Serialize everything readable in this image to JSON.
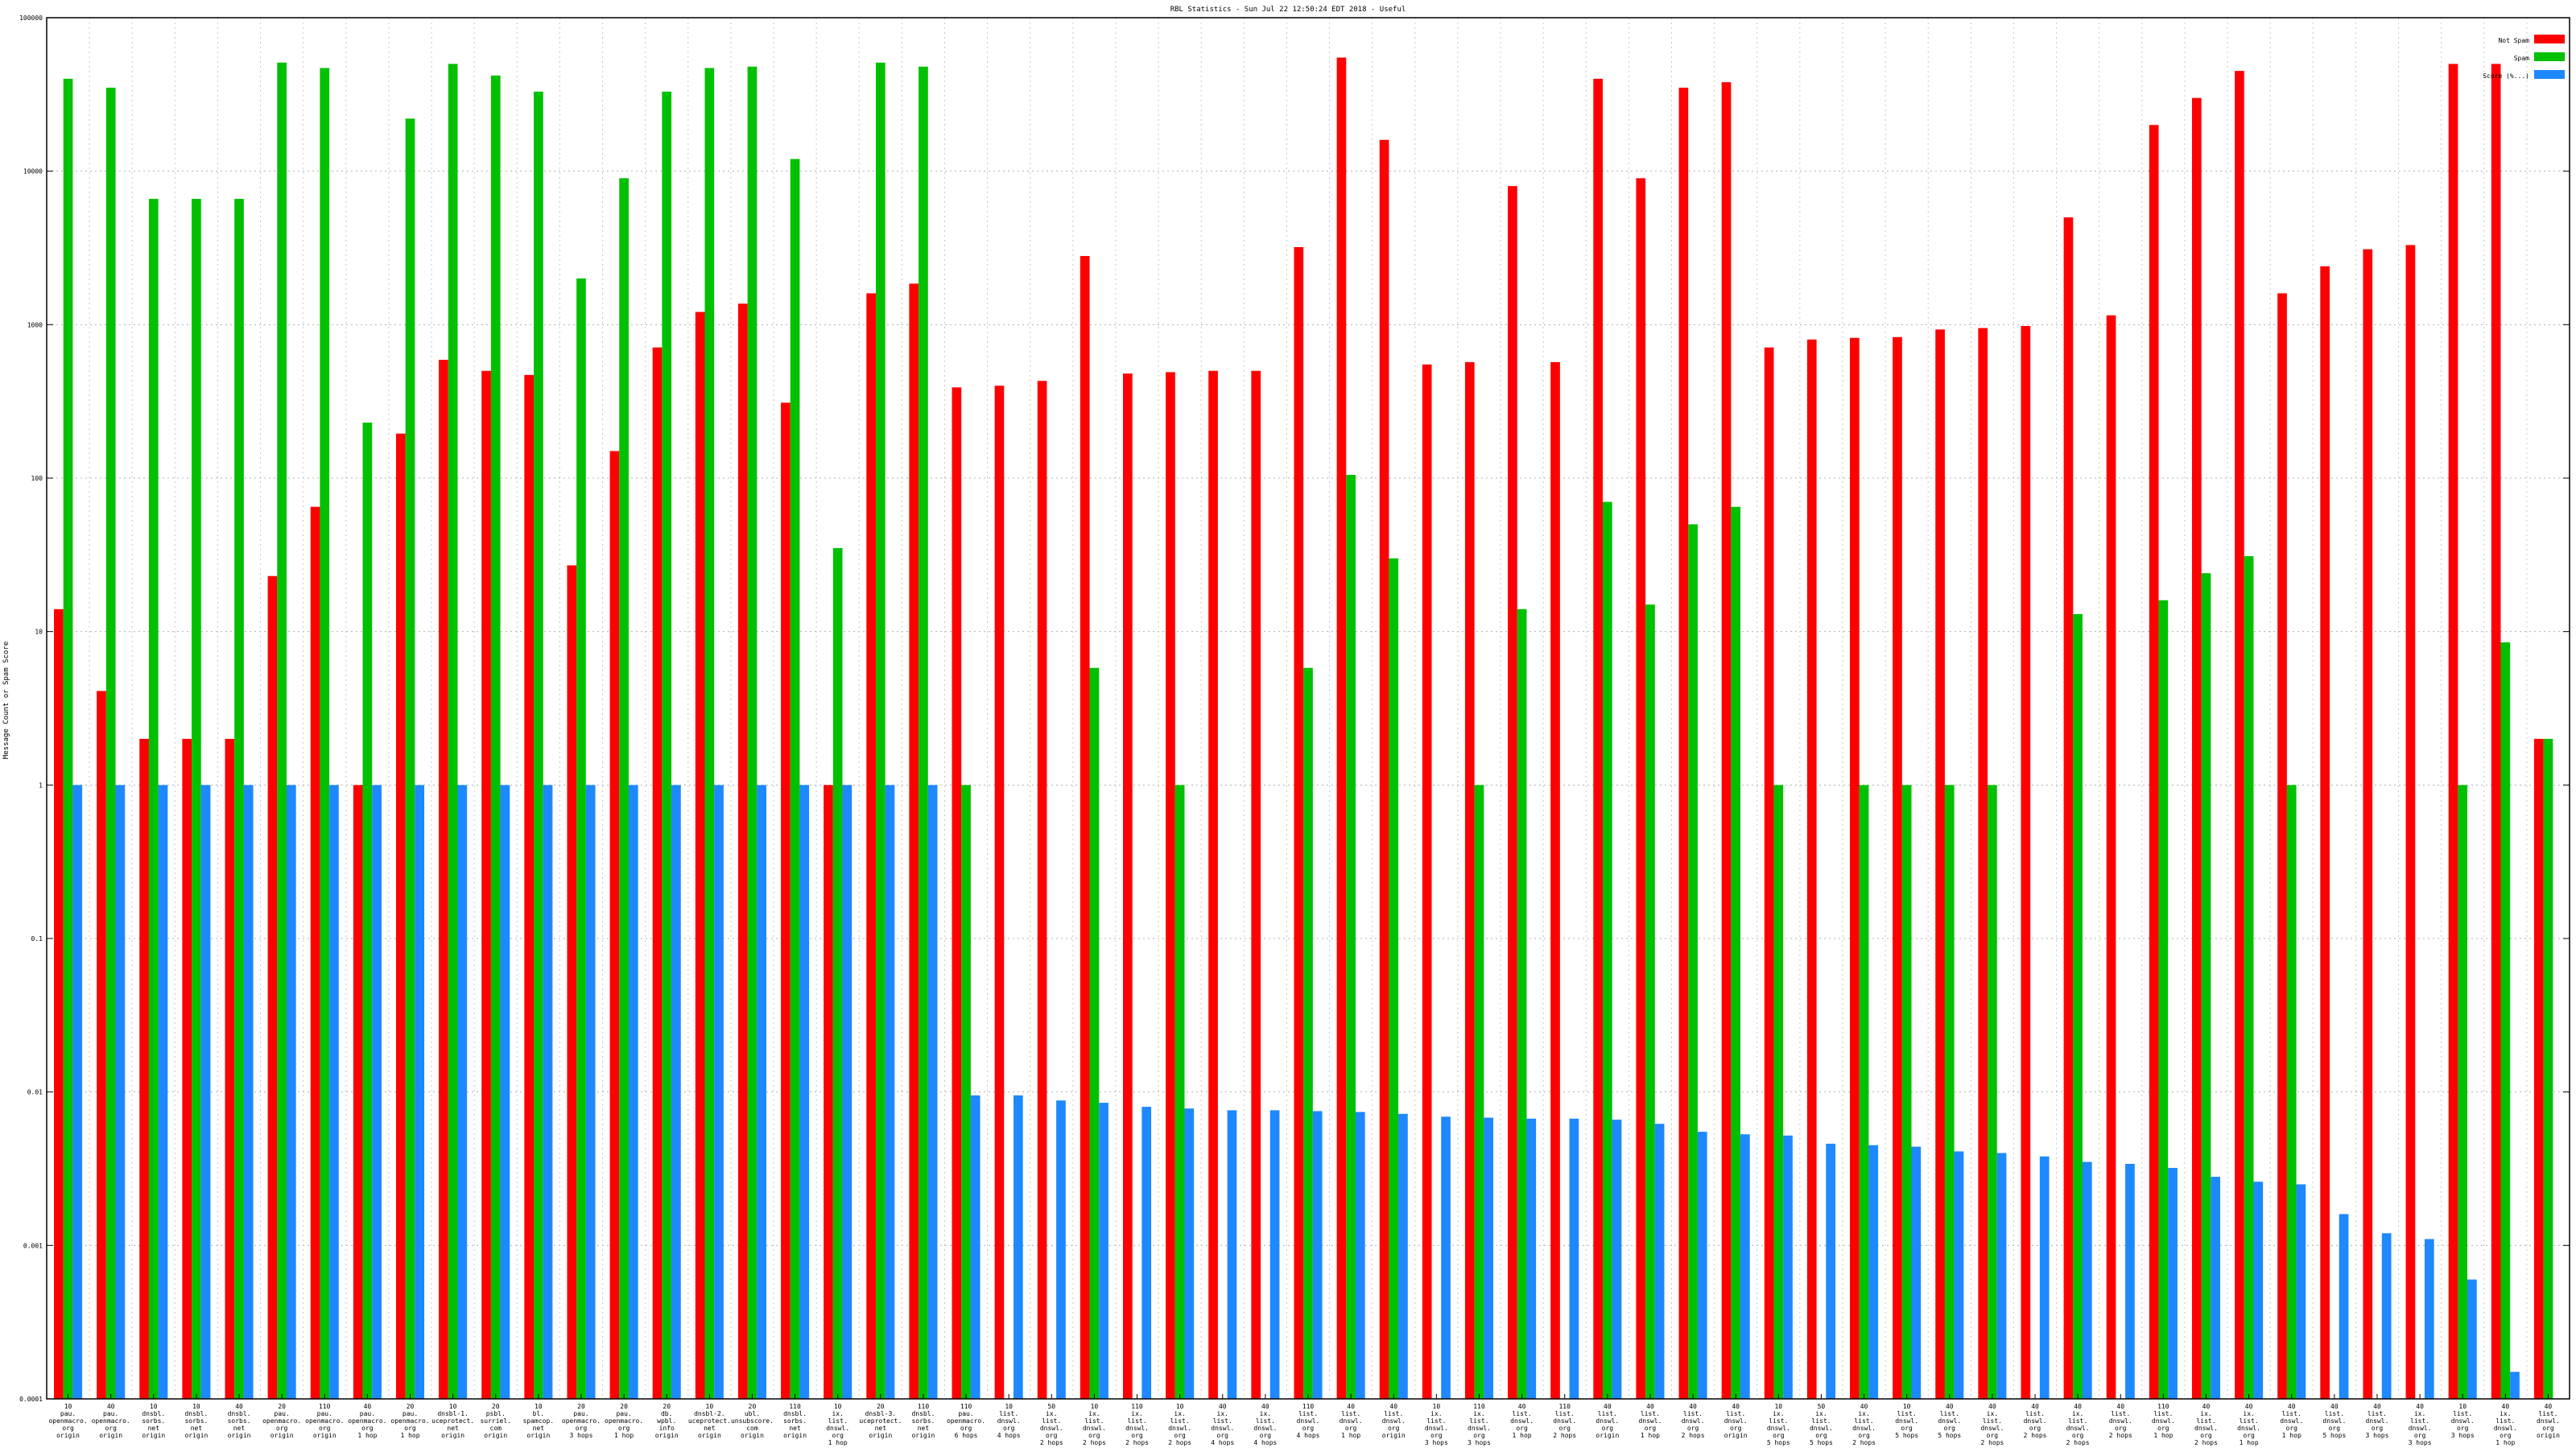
{
  "chart_data": {
    "type": "bar",
    "title": "RBL Statistics - Sun Jul 22 12:50:24 EDT 2018 - Useful",
    "xlabel": "",
    "ylabel": "Message Count or Spam Score",
    "yscale": "log",
    "ylim": [
      0.0001,
      100000
    ],
    "y_ticks": [
      "0.0001",
      "0.001",
      "0.01",
      "0.1",
      "1",
      "10",
      "100",
      "1000",
      "10000",
      "100000"
    ],
    "grid": true,
    "legend_position": "top-right",
    "categories": [
      [
        "10",
        "pau.",
        "openmacro.",
        "org",
        "origin"
      ],
      [
        "40",
        "pau.",
        "openmacro.",
        "org",
        "origin"
      ],
      [
        "10",
        "dnsbl.",
        "sorbs.",
        "net",
        "origin"
      ],
      [
        "10",
        "dnsbl.",
        "sorbs.",
        "net",
        "origin"
      ],
      [
        "40",
        "dnsbl.",
        "sorbs.",
        "net",
        "origin"
      ],
      [
        "20",
        "pau.",
        "openmacro.",
        "org",
        "origin"
      ],
      [
        "110",
        "pau.",
        "openmacro.",
        "org",
        "origin"
      ],
      [
        "40",
        "pau.",
        "openmacro.",
        "org",
        "1 hop"
      ],
      [
        "20",
        "pau.",
        "openmacro.",
        "org",
        "1 hop"
      ],
      [
        "10",
        "dnsbl-1.",
        "uceprotect.",
        "net",
        "origin"
      ],
      [
        "20",
        "psbl.",
        "surriel.",
        "com",
        "origin"
      ],
      [
        "10",
        "bl.",
        "spamcop.",
        "net",
        "origin"
      ],
      [
        "20",
        "pau.",
        "openmacro.",
        "org",
        "3 hops"
      ],
      [
        "20",
        "pau.",
        "openmacro.",
        "org",
        "1 hop"
      ],
      [
        "20",
        "db.",
        "wpbl.",
        "info",
        "origin"
      ],
      [
        "10",
        "dnsbl-2.",
        "uceprotect.",
        "net",
        "origin"
      ],
      [
        "20",
        "ubl.",
        "unsubscore.",
        "com",
        "origin"
      ],
      [
        "110",
        "dnsbl.",
        "sorbs.",
        "net",
        "origin"
      ],
      [
        "10",
        "ix.",
        "list.",
        "dnswl.",
        "org",
        "1 hop"
      ],
      [
        "20",
        "dnsbl-3.",
        "uceprotect.",
        "net",
        "origin"
      ],
      [
        "110",
        "dnsbl.",
        "sorbs.",
        "net",
        "origin"
      ],
      [
        "110",
        "pau.",
        "openmacro.",
        "org",
        "6 hops"
      ],
      [
        "10",
        "list.",
        "dnswl.",
        "org",
        "4 hops"
      ],
      [
        "50",
        "ix.",
        "list.",
        "dnswl.",
        "org",
        "2 hops"
      ],
      [
        "10",
        "ix.",
        "list.",
        "dnswl.",
        "org",
        "2 hops"
      ],
      [
        "110",
        "ix.",
        "list.",
        "dnswl.",
        "org",
        "2 hops"
      ],
      [
        "10",
        "ix.",
        "list.",
        "dnswl.",
        "org",
        "2 hops"
      ],
      [
        "40",
        "ix.",
        "list.",
        "dnswl.",
        "org",
        "4 hops"
      ],
      [
        "40",
        "ix.",
        "list.",
        "dnswl.",
        "org",
        "4 hops"
      ],
      [
        "110",
        "list.",
        "dnswl.",
        "org",
        "4 hops"
      ],
      [
        "40",
        "list.",
        "dnswl.",
        "org",
        "1 hop"
      ],
      [
        "40",
        "list.",
        "dnswl.",
        "org",
        "origin"
      ],
      [
        "10",
        "ix.",
        "list.",
        "dnswl.",
        "org",
        "3 hops"
      ],
      [
        "110",
        "ix.",
        "list.",
        "dnswl.",
        "org",
        "3 hops"
      ],
      [
        "40",
        "list.",
        "dnswl.",
        "org",
        "1 hop"
      ],
      [
        "110",
        "list.",
        "dnswl.",
        "org",
        "2 hops"
      ],
      [
        "40",
        "list.",
        "dnswl.",
        "org",
        "origin"
      ],
      [
        "40",
        "list.",
        "dnswl.",
        "org",
        "1 hop"
      ],
      [
        "40",
        "list.",
        "dnswl.",
        "org",
        "2 hops"
      ],
      [
        "40",
        "list.",
        "dnswl.",
        "org",
        "origin"
      ],
      [
        "10",
        "ix.",
        "list.",
        "dnswl.",
        "org",
        "5 hops"
      ],
      [
        "50",
        "ix.",
        "list.",
        "dnswl.",
        "org",
        "5 hops"
      ],
      [
        "40",
        "ix.",
        "list.",
        "dnswl.",
        "org",
        "2 hops"
      ],
      [
        "10",
        "list.",
        "dnswl.",
        "org",
        "5 hops"
      ],
      [
        "40",
        "list.",
        "dnswl.",
        "org",
        "5 hops"
      ],
      [
        "40",
        "ix.",
        "list.",
        "dnswl.",
        "org",
        "2 hops"
      ],
      [
        "40",
        "list.",
        "dnswl.",
        "org",
        "2 hops"
      ],
      [
        "40",
        "ix.",
        "list.",
        "dnswl.",
        "org",
        "2 hops"
      ],
      [
        "40",
        "list.",
        "dnswl.",
        "org",
        "2 hops"
      ],
      [
        "110",
        "list.",
        "dnswl.",
        "org",
        "1 hop"
      ],
      [
        "40",
        "ix.",
        "list.",
        "dnswl.",
        "org",
        "2 hops"
      ],
      [
        "40",
        "ix.",
        "list.",
        "dnswl.",
        "org",
        "1 hop"
      ],
      [
        "40",
        "list.",
        "dnswl.",
        "org",
        "1 hop"
      ],
      [
        "40",
        "list.",
        "dnswl.",
        "org",
        "5 hops"
      ],
      [
        "40",
        "list.",
        "dnswl.",
        "org",
        "3 hops"
      ],
      [
        "40",
        "ix.",
        "list.",
        "dnswl.",
        "org",
        "3 hops"
      ],
      [
        "10",
        "list.",
        "dnswl.",
        "org",
        "3 hops"
      ],
      [
        "40",
        "ix.",
        "list.",
        "dnswl.",
        "org",
        "1 hop"
      ],
      [
        "40",
        "list.",
        "dnswl.",
        "org",
        "origin"
      ]
    ],
    "series": [
      {
        "name": "Not Spam",
        "color": "#ff0000",
        "values": [
          14,
          4.1,
          2,
          2,
          2,
          23,
          65,
          1,
          195,
          590,
          500,
          470,
          27,
          150,
          710,
          1210,
          1370,
          310,
          1,
          1600,
          1850,
          390,
          400,
          430,
          2800,
          480,
          490,
          500,
          500,
          3200,
          55000,
          16000,
          550,
          570,
          8000,
          570,
          40000,
          9000,
          35000,
          38000,
          710,
          800,
          820,
          830,
          930,
          950,
          980,
          5000,
          1150,
          20000,
          30000,
          45000,
          1600,
          2400,
          3100,
          3300,
          50000,
          50000,
          2
        ]
      },
      {
        "name": "Spam",
        "color": "#00c000",
        "values": [
          40000,
          35000,
          6600,
          6600,
          6600,
          51000,
          47000,
          230,
          22000,
          50000,
          42000,
          33000,
          2000,
          9000,
          33000,
          47000,
          48000,
          12000,
          35,
          51000,
          48000,
          1,
          null,
          null,
          5.8,
          null,
          1,
          null,
          null,
          5.8,
          105,
          30,
          null,
          1,
          14,
          null,
          70,
          15,
          50,
          65,
          1,
          null,
          1,
          1,
          1,
          1,
          null,
          13,
          null,
          16,
          24,
          31,
          1,
          null,
          null,
          null,
          1,
          8.5,
          2
        ]
      },
      {
        "name": "Score (%...)",
        "color": "#1e88ff",
        "values": [
          1,
          1,
          1,
          1,
          1,
          1,
          1,
          1,
          1,
          1,
          1,
          1,
          1,
          1,
          1,
          1,
          1,
          1,
          1,
          1,
          1,
          0.0095,
          0.0095,
          0.0088,
          0.0085,
          0.008,
          0.0078,
          0.0076,
          0.0076,
          0.0075,
          0.0074,
          0.0072,
          0.0069,
          0.0068,
          0.0067,
          0.0067,
          0.0066,
          0.0062,
          0.0055,
          0.0053,
          0.0052,
          0.0046,
          0.0045,
          0.0044,
          0.0041,
          0.004,
          0.0038,
          0.0035,
          0.0034,
          0.0032,
          0.0028,
          0.0026,
          0.0025,
          0.0016,
          0.0012,
          0.0011,
          0.0006,
          0.00015,
          0.0001
        ]
      }
    ]
  }
}
